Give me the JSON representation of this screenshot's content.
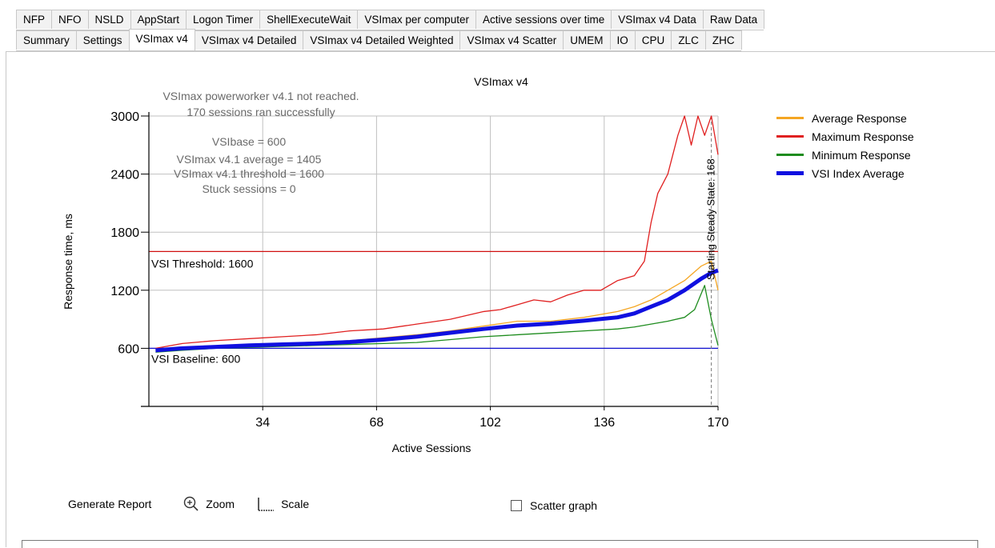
{
  "tabs_row1": [
    "NFP",
    "NFO",
    "NSLD",
    "AppStart",
    "Logon Timer",
    "ShellExecuteWait",
    "VSImax per computer",
    "Active sessions over time",
    "VSImax v4 Data",
    "Raw Data"
  ],
  "tabs_row2": [
    "Summary",
    "Settings",
    "VSImax v4",
    "VSImax v4 Detailed",
    "VSImax v4 Detailed Weighted",
    "VSImax v4 Scatter",
    "UMEM",
    "IO",
    "CPU",
    "ZLC",
    "ZHC"
  ],
  "active_tab": "VSImax v4",
  "toolbar": {
    "generate_report": "Generate Report",
    "zoom": "Zoom",
    "scale": "Scale",
    "scatter_graph": "Scatter graph",
    "scatter_checked": false
  },
  "chart_data": {
    "type": "line",
    "title": "VSImax v4",
    "xlabel": "Active Sessions",
    "ylabel": "Response time, ms",
    "xlim": [
      0,
      170
    ],
    "ylim": [
      0,
      3000
    ],
    "xticks": [
      34,
      68,
      102,
      136,
      170
    ],
    "yticks": [
      600,
      1200,
      1800,
      2400,
      3000
    ],
    "grid": true,
    "legend_position": "right",
    "annotations": [
      "VSImax powerworker v4.1 not reached.",
      "170 sessions ran successfully",
      "VSIbase = 600",
      "VSImax v4.1 average = 1405",
      "VSImax v4.1 threshold = 1600",
      "Stuck sessions = 0"
    ],
    "threshold_label": "VSI Threshold: 1600",
    "threshold": 1600,
    "baseline_label": "VSI Baseline: 600",
    "baseline": 600,
    "steady_state_label": "Starting Steady State: 168",
    "steady_state_x": 168,
    "series": [
      {
        "name": "Average Response",
        "color": "#f5a623",
        "x": [
          2,
          10,
          20,
          30,
          40,
          50,
          60,
          70,
          80,
          90,
          100,
          110,
          120,
          130,
          140,
          145,
          150,
          155,
          160,
          165,
          168,
          170
        ],
        "y": [
          570,
          600,
          620,
          640,
          650,
          665,
          680,
          710,
          740,
          780,
          830,
          880,
          880,
          920,
          980,
          1030,
          1100,
          1200,
          1300,
          1450,
          1500,
          1200
        ]
      },
      {
        "name": "Maximum Response",
        "color": "#e02020",
        "x": [
          2,
          10,
          20,
          30,
          40,
          50,
          60,
          70,
          80,
          90,
          100,
          105,
          110,
          115,
          120,
          125,
          130,
          135,
          140,
          145,
          148,
          150,
          152,
          155,
          158,
          160,
          162,
          164,
          166,
          168,
          170
        ],
        "y": [
          600,
          650,
          680,
          700,
          720,
          740,
          780,
          800,
          850,
          900,
          980,
          1000,
          1050,
          1100,
          1080,
          1150,
          1200,
          1200,
          1300,
          1350,
          1500,
          1900,
          2200,
          2400,
          2800,
          3000,
          2700,
          3000,
          2800,
          3000,
          2600
        ]
      },
      {
        "name": "Minimum Response",
        "color": "#1e8c1e",
        "x": [
          2,
          10,
          20,
          30,
          40,
          50,
          60,
          70,
          80,
          90,
          100,
          110,
          120,
          130,
          140,
          145,
          150,
          155,
          160,
          163,
          166,
          168,
          170
        ],
        "y": [
          560,
          580,
          600,
          610,
          620,
          630,
          640,
          650,
          660,
          690,
          720,
          740,
          760,
          780,
          800,
          820,
          850,
          880,
          920,
          1000,
          1250,
          900,
          630
        ]
      },
      {
        "name": "VSI Index Average",
        "color": "#1010e0",
        "x": [
          2,
          10,
          20,
          30,
          40,
          50,
          60,
          70,
          80,
          90,
          100,
          110,
          120,
          130,
          140,
          145,
          150,
          155,
          160,
          165,
          168,
          170
        ],
        "y": [
          580,
          600,
          615,
          630,
          640,
          650,
          665,
          690,
          720,
          760,
          800,
          835,
          855,
          885,
          920,
          960,
          1030,
          1100,
          1200,
          1320,
          1380,
          1405
        ]
      }
    ]
  }
}
